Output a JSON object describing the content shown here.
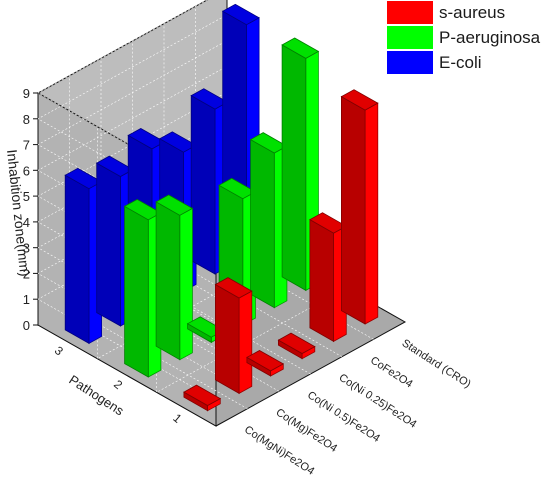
{
  "chart_data": {
    "type": "bar",
    "chart_style": "3d-grouped-bar",
    "ylabel": "Inhabition zone(mm)",
    "xlabel": "Pathogens",
    "zlabel": "",
    "ylim": [
      0,
      9
    ],
    "yticks": [
      "0",
      "1",
      "2",
      "3",
      "4",
      "5",
      "6",
      "7",
      "8",
      "9"
    ],
    "pathogen_ticks": [
      "1",
      "2",
      "3"
    ],
    "categories": [
      "Co(MgNi)Fe2O4",
      "Co(Mg)Fe2O4",
      "Co(Ni 0.5)Fe2O4",
      "Co(Ni 0.25)Fe2O4",
      "CoFe2O4",
      "Standard (CRO)"
    ],
    "series": [
      {
        "name": "s-aureus",
        "color": "#ff0000",
        "pathogen": "1",
        "values": [
          0.2,
          3.7,
          0.2,
          0.2,
          4.2,
          8.3
        ]
      },
      {
        "name": "P-aeruginosa",
        "color": "#00ff00",
        "pathogen": "2",
        "values": [
          6.1,
          5.6,
          0.2,
          4.9,
          6.0,
          9.0
        ]
      },
      {
        "name": "E-coli",
        "color": "#0000ff",
        "pathogen": "3",
        "values": [
          6.0,
          5.8,
          6.2,
          5.4,
          6.4,
          9.0
        ]
      }
    ],
    "grid": true,
    "legend_position": "top-right"
  }
}
